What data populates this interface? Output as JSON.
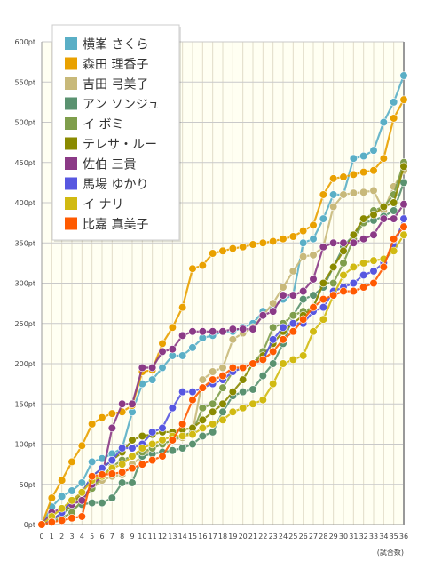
{
  "chart_data": {
    "type": "line",
    "xlabel": "(試合数)",
    "ylabel": "",
    "x": [
      0,
      1,
      2,
      3,
      4,
      5,
      6,
      7,
      8,
      9,
      10,
      11,
      12,
      13,
      14,
      15,
      16,
      17,
      18,
      19,
      20,
      21,
      22,
      23,
      24,
      25,
      26,
      27,
      28,
      29,
      30,
      31,
      32,
      33,
      34,
      35,
      36
    ],
    "xlim": [
      0,
      36
    ],
    "ylim": [
      0,
      600
    ],
    "y_unit": "pt",
    "grid": true,
    "legend_position": "top-left",
    "series": [
      {
        "name": "横峯 さくら",
        "color": "#5aafc6",
        "values": [
          0,
          22,
          35,
          42,
          52,
          78,
          82,
          88,
          95,
          140,
          175,
          180,
          195,
          210,
          210,
          220,
          232,
          235,
          240,
          240,
          245,
          250,
          265,
          270,
          280,
          285,
          350,
          355,
          380,
          410,
          410,
          455,
          458,
          465,
          500,
          525,
          558
        ]
      },
      {
        "name": "森田 理香子",
        "color": "#e9a100",
        "values": [
          0,
          33,
          55,
          78,
          98,
          125,
          133,
          138,
          140,
          148,
          190,
          192,
          225,
          245,
          270,
          318,
          322,
          337,
          340,
          343,
          345,
          348,
          350,
          352,
          355,
          358,
          365,
          372,
          410,
          430,
          432,
          435,
          438,
          440,
          455,
          505,
          528
        ]
      },
      {
        "name": "吉田 弓美子",
        "color": "#c8b97a",
        "values": [
          0,
          5,
          10,
          25,
          35,
          45,
          55,
          60,
          62,
          75,
          85,
          95,
          100,
          105,
          108,
          115,
          180,
          190,
          195,
          230,
          238,
          245,
          260,
          275,
          295,
          315,
          333,
          335,
          345,
          395,
          410,
          412,
          413,
          415,
          390,
          420,
          440
        ]
      },
      {
        "name": "アン ソンジュ",
        "color": "#5a9270",
        "values": [
          0,
          5,
          15,
          20,
          25,
          27,
          27,
          33,
          52,
          52,
          85,
          88,
          90,
          92,
          95,
          100,
          110,
          115,
          140,
          160,
          165,
          168,
          185,
          200,
          225,
          260,
          280,
          285,
          295,
          320,
          345,
          360,
          375,
          378,
          383,
          390,
          425
        ]
      },
      {
        "name": "イ ボミ",
        "color": "#7f9e4c",
        "values": [
          0,
          3,
          8,
          15,
          30,
          45,
          60,
          72,
          80,
          85,
          90,
          95,
          100,
          105,
          110,
          115,
          145,
          150,
          170,
          190,
          195,
          200,
          215,
          245,
          250,
          260,
          265,
          270,
          300,
          300,
          325,
          355,
          375,
          390,
          395,
          410,
          450
        ]
      },
      {
        "name": "テレサ・ルー",
        "color": "#8a8a00",
        "values": [
          0,
          5,
          15,
          25,
          40,
          60,
          70,
          80,
          90,
          105,
          110,
          112,
          115,
          115,
          118,
          120,
          130,
          140,
          150,
          165,
          180,
          200,
          210,
          225,
          240,
          250,
          260,
          270,
          300,
          320,
          340,
          360,
          380,
          385,
          395,
          400,
          445
        ]
      },
      {
        "name": "佐伯 三貴",
        "color": "#8b3a86",
        "values": [
          0,
          15,
          20,
          25,
          30,
          50,
          60,
          120,
          150,
          150,
          195,
          195,
          215,
          218,
          235,
          240,
          240,
          240,
          240,
          243,
          243,
          243,
          260,
          265,
          285,
          285,
          290,
          305,
          345,
          350,
          350,
          350,
          355,
          360,
          380,
          380,
          398
        ]
      },
      {
        "name": "馬場 ゆかり",
        "color": "#5757e0",
        "values": [
          0,
          5,
          15,
          30,
          40,
          60,
          70,
          80,
          95,
          95,
          100,
          115,
          120,
          145,
          165,
          165,
          170,
          175,
          180,
          190,
          195,
          200,
          205,
          230,
          245,
          250,
          250,
          265,
          270,
          290,
          295,
          300,
          310,
          315,
          325,
          345,
          380
        ]
      },
      {
        "name": "イ ナリ",
        "color": "#d1ba12",
        "values": [
          0,
          10,
          20,
          30,
          40,
          55,
          60,
          70,
          75,
          85,
          95,
          100,
          105,
          110,
          110,
          112,
          120,
          125,
          130,
          140,
          145,
          150,
          155,
          175,
          200,
          205,
          210,
          240,
          255,
          285,
          310,
          320,
          325,
          328,
          330,
          340,
          360
        ]
      },
      {
        "name": "比嘉 真美子",
        "color": "#ff5a00",
        "values": [
          0,
          3,
          5,
          8,
          10,
          60,
          62,
          63,
          65,
          70,
          75,
          80,
          85,
          105,
          125,
          155,
          170,
          180,
          185,
          195,
          195,
          200,
          205,
          215,
          230,
          240,
          255,
          270,
          280,
          285,
          290,
          290,
          295,
          300,
          320,
          355,
          370
        ]
      }
    ],
    "x_ticks": [
      "0",
      "1",
      "2",
      "3",
      "4",
      "5",
      "6",
      "7",
      "8",
      "9",
      "10",
      "11",
      "12",
      "13",
      "14",
      "15",
      "16",
      "17",
      "18",
      "19",
      "20",
      "21",
      "22",
      "23",
      "24",
      "25",
      "26",
      "27",
      "28",
      "29",
      "30",
      "31",
      "32",
      "33",
      "34",
      "35",
      "36"
    ],
    "y_ticks": [
      "0pt",
      "50pt",
      "100pt",
      "150pt",
      "200pt",
      "250pt",
      "300pt",
      "350pt",
      "400pt",
      "450pt",
      "500pt",
      "550pt",
      "600pt"
    ]
  }
}
